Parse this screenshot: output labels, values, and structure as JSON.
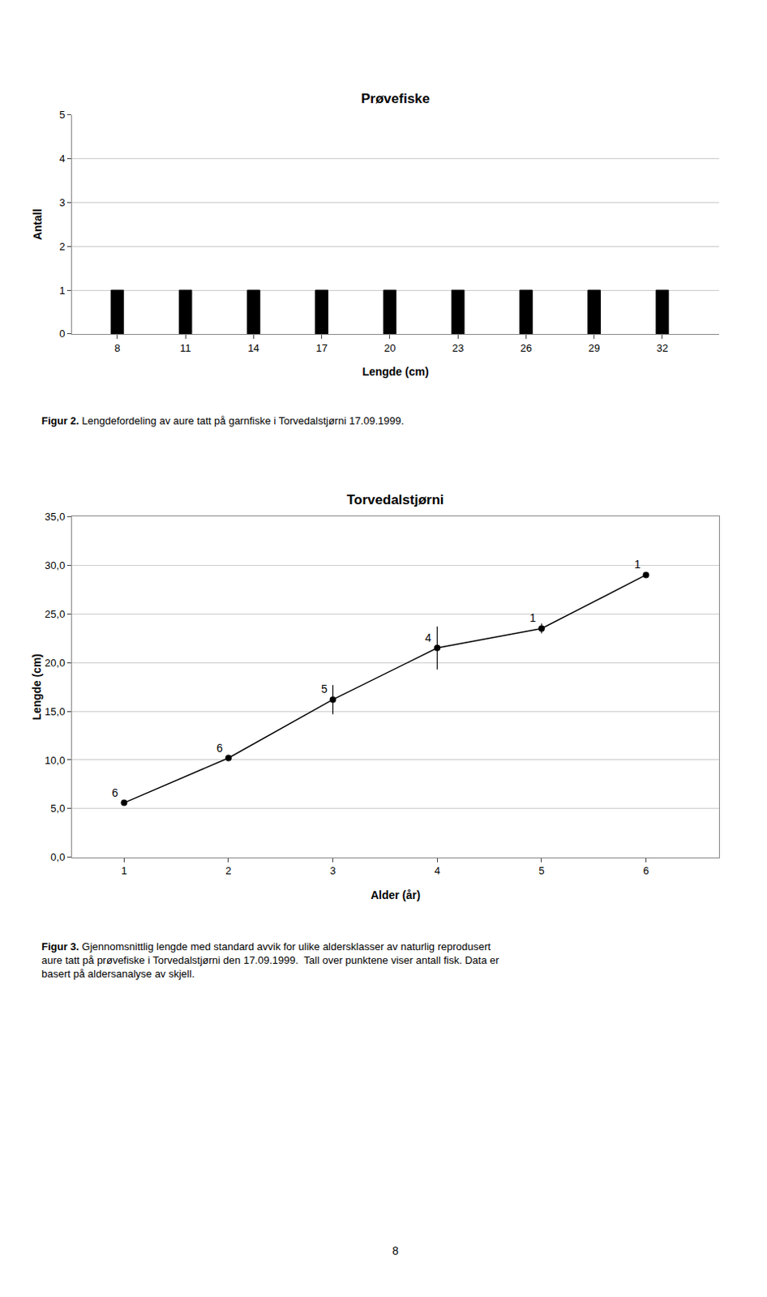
{
  "chart_data": [
    {
      "type": "bar",
      "title": "Prøvefiske",
      "x": [
        8,
        11,
        14,
        17,
        20,
        23,
        26,
        29,
        32
      ],
      "values": [
        1,
        1,
        1,
        1,
        1,
        1,
        1,
        1,
        1
      ],
      "color": "#000000",
      "xlabel": "Lengde (cm)",
      "ylabel": "Antall",
      "xlim": [
        6.0,
        34.5
      ],
      "xticks": [
        8,
        11,
        14,
        17,
        20,
        23,
        26,
        29,
        32
      ],
      "ylim": [
        0,
        5
      ],
      "yticks": [
        0,
        1,
        2,
        3,
        4,
        5
      ],
      "grid": true,
      "annotations": [
        "Figur 2. Lengdefordeling av aure tatt på garnfiske i Torvedalstjørni 17.09.1999."
      ]
    },
    {
      "type": "line",
      "title": "Torvedalstjørni",
      "x": [
        1,
        2,
        3,
        4,
        5,
        6
      ],
      "values": [
        5.6,
        10.2,
        16.2,
        21.5,
        23.5,
        29.0
      ],
      "yerr": [
        0.0,
        0.3,
        1.5,
        2.2,
        0.5,
        0.0
      ],
      "counts": [
        6,
        6,
        5,
        4,
        1,
        1
      ],
      "color": "#000000",
      "marker": "circle",
      "xlabel": "Alder (år)",
      "ylabel": "Lengde (cm)",
      "xlim": [
        0.5,
        6.7
      ],
      "xticks": [
        1,
        2,
        3,
        4,
        5,
        6
      ],
      "ylim": [
        0,
        35
      ],
      "yticks": [
        {
          "value": 0.0,
          "label": "0,0"
        },
        {
          "value": 5.0,
          "label": "5,0"
        },
        {
          "value": 10.0,
          "label": "10,0"
        },
        {
          "value": 15.0,
          "label": "15,0"
        },
        {
          "value": 20.0,
          "label": "20,0"
        },
        {
          "value": 25.0,
          "label": "25,0"
        },
        {
          "value": 30.0,
          "label": "30,0"
        },
        {
          "value": 35.0,
          "label": "35,0"
        }
      ],
      "grid": true,
      "annotations": [
        "Figur 3. Gjennomsnittlig lengde med standard avvik for ulike aldersklasser av naturlig reprodusert\naure tatt på prøvefiske i Torvedalstjørni den 17.09.1999.  Tall over punktene viser antall fisk. Data er\nbasert på aldersanalyse av skjell."
      ]
    }
  ],
  "annotations": [
    "8"
  ]
}
